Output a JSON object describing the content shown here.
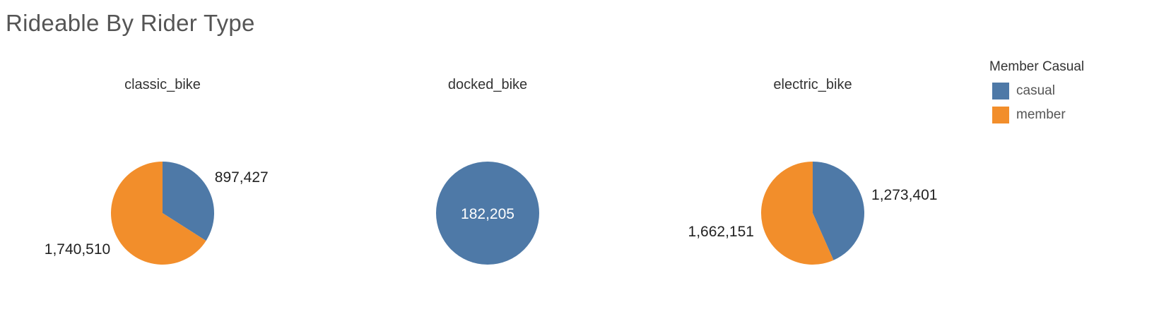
{
  "title": "Rideable By Rider Type",
  "legend": {
    "title": "Member Casual",
    "items": [
      {
        "label": "casual",
        "color": "#4e79a7"
      },
      {
        "label": "member",
        "color": "#f28e2b"
      }
    ]
  },
  "chart_data": [
    {
      "type": "pie",
      "title": "classic_bike",
      "slices": [
        {
          "name": "casual",
          "value": 897427,
          "label": "897,427",
          "color": "#4e79a7"
        },
        {
          "name": "member",
          "value": 1740510,
          "label": "1,740,510",
          "color": "#f28e2b"
        }
      ]
    },
    {
      "type": "pie",
      "title": "docked_bike",
      "slices": [
        {
          "name": "casual",
          "value": 182205,
          "label": "182,205",
          "color": "#4e79a7"
        }
      ]
    },
    {
      "type": "pie",
      "title": "electric_bike",
      "slices": [
        {
          "name": "casual",
          "value": 1273401,
          "label": "1,273,401",
          "color": "#4e79a7"
        },
        {
          "name": "member",
          "value": 1662151,
          "label": "1,662,151",
          "color": "#f28e2b"
        }
      ]
    }
  ]
}
